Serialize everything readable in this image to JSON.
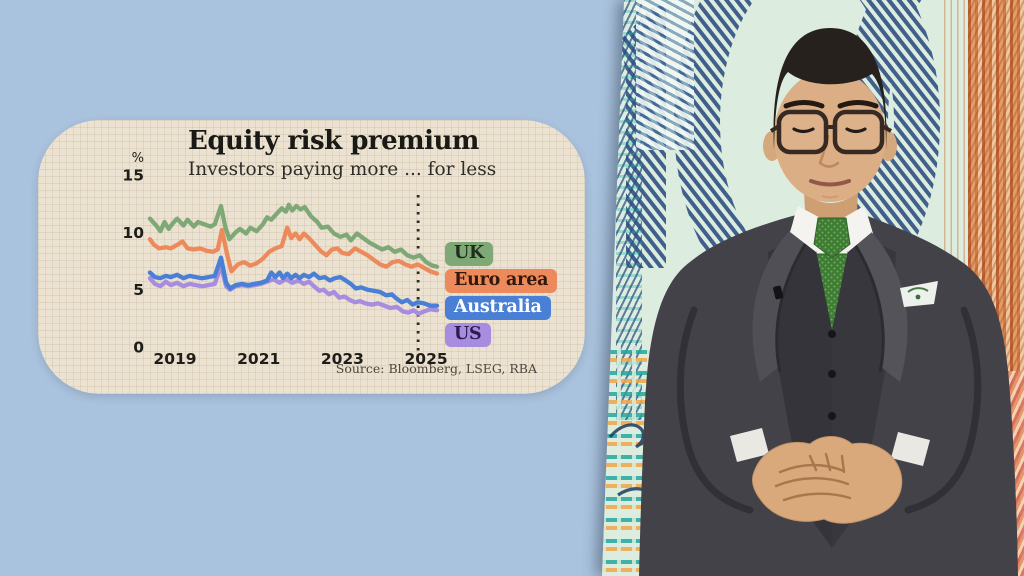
{
  "chart_panel": {
    "title": "Equity risk premium",
    "subtitle": "Investors paying more ... for less",
    "unit": "%",
    "source": "Source: Bloomberg, LSEG, RBA"
  },
  "chart_data": {
    "type": "line",
    "title": "Equity risk premium",
    "subtitle": "Investors paying more ... for less",
    "ylabel": "%",
    "ylim": [
      0,
      15
    ],
    "yticks": [
      0,
      5,
      10,
      15
    ],
    "xticks": [
      2019,
      2021,
      2023,
      2025
    ],
    "x_range": [
      2018.4,
      2025.26
    ],
    "grid": true,
    "legend_position": "right",
    "dashed_marker_x": 2024.81,
    "source": "Source: Bloomberg, LSEG, RBA",
    "series": [
      {
        "name": "UK",
        "color": "#7fa877",
        "label_color": "#1f2e1a",
        "points": [
          [
            2018.4,
            11.2
          ],
          [
            2018.55,
            10.6
          ],
          [
            2018.65,
            10.1
          ],
          [
            2018.75,
            10.9
          ],
          [
            2018.85,
            10.3
          ],
          [
            2018.95,
            10.8
          ],
          [
            2019.05,
            11.2
          ],
          [
            2019.2,
            10.6
          ],
          [
            2019.3,
            11.1
          ],
          [
            2019.45,
            10.5
          ],
          [
            2019.55,
            10.9
          ],
          [
            2019.7,
            10.7
          ],
          [
            2019.85,
            10.5
          ],
          [
            2019.95,
            10.7
          ],
          [
            2020.1,
            12.3
          ],
          [
            2020.2,
            10.5
          ],
          [
            2020.3,
            9.4
          ],
          [
            2020.45,
            10.0
          ],
          [
            2020.55,
            10.3
          ],
          [
            2020.7,
            9.9
          ],
          [
            2020.8,
            10.4
          ],
          [
            2020.95,
            10.1
          ],
          [
            2021.1,
            10.7
          ],
          [
            2021.2,
            11.3
          ],
          [
            2021.3,
            11.1
          ],
          [
            2021.45,
            11.7
          ],
          [
            2021.55,
            12.1
          ],
          [
            2021.65,
            11.8
          ],
          [
            2021.72,
            12.4
          ],
          [
            2021.8,
            11.9
          ],
          [
            2021.9,
            12.3
          ],
          [
            2022.0,
            12.0
          ],
          [
            2022.1,
            12.2
          ],
          [
            2022.25,
            11.4
          ],
          [
            2022.4,
            10.9
          ],
          [
            2022.5,
            10.4
          ],
          [
            2022.65,
            10.5
          ],
          [
            2022.8,
            9.9
          ],
          [
            2022.95,
            9.6
          ],
          [
            2023.1,
            9.8
          ],
          [
            2023.2,
            9.3
          ],
          [
            2023.35,
            9.9
          ],
          [
            2023.5,
            9.5
          ],
          [
            2023.65,
            9.1
          ],
          [
            2023.8,
            8.8
          ],
          [
            2023.95,
            8.5
          ],
          [
            2024.1,
            8.7
          ],
          [
            2024.25,
            8.3
          ],
          [
            2024.4,
            8.5
          ],
          [
            2024.55,
            8.0
          ],
          [
            2024.7,
            7.8
          ],
          [
            2024.85,
            8.0
          ],
          [
            2025.0,
            7.4
          ],
          [
            2025.15,
            7.1
          ],
          [
            2025.26,
            7.0
          ]
        ]
      },
      {
        "name": "Euro area",
        "color": "#ed8a5c",
        "label_color": "#33190b",
        "points": [
          [
            2018.4,
            9.4
          ],
          [
            2018.5,
            8.9
          ],
          [
            2018.62,
            8.6
          ],
          [
            2018.78,
            8.7
          ],
          [
            2018.9,
            8.6
          ],
          [
            2019.05,
            8.9
          ],
          [
            2019.18,
            9.2
          ],
          [
            2019.3,
            8.6
          ],
          [
            2019.45,
            8.5
          ],
          [
            2019.6,
            8.6
          ],
          [
            2019.75,
            8.4
          ],
          [
            2019.9,
            8.3
          ],
          [
            2020.02,
            8.5
          ],
          [
            2020.12,
            10.2
          ],
          [
            2020.25,
            8.0
          ],
          [
            2020.35,
            6.6
          ],
          [
            2020.5,
            7.2
          ],
          [
            2020.65,
            7.4
          ],
          [
            2020.8,
            7.1
          ],
          [
            2020.95,
            7.3
          ],
          [
            2021.1,
            7.7
          ],
          [
            2021.25,
            8.3
          ],
          [
            2021.4,
            8.6
          ],
          [
            2021.55,
            8.8
          ],
          [
            2021.68,
            10.4
          ],
          [
            2021.78,
            9.5
          ],
          [
            2021.88,
            9.9
          ],
          [
            2021.98,
            9.4
          ],
          [
            2022.08,
            9.9
          ],
          [
            2022.2,
            9.5
          ],
          [
            2022.35,
            8.9
          ],
          [
            2022.5,
            8.3
          ],
          [
            2022.62,
            8.0
          ],
          [
            2022.75,
            8.5
          ],
          [
            2022.88,
            8.6
          ],
          [
            2023.0,
            8.2
          ],
          [
            2023.15,
            8.1
          ],
          [
            2023.3,
            8.6
          ],
          [
            2023.45,
            8.3
          ],
          [
            2023.6,
            8.0
          ],
          [
            2023.75,
            7.6
          ],
          [
            2023.9,
            7.2
          ],
          [
            2024.05,
            7.0
          ],
          [
            2024.2,
            7.4
          ],
          [
            2024.35,
            7.5
          ],
          [
            2024.5,
            7.2
          ],
          [
            2024.65,
            7.0
          ],
          [
            2024.8,
            7.2
          ],
          [
            2024.95,
            6.9
          ],
          [
            2025.1,
            6.6
          ],
          [
            2025.26,
            6.4
          ]
        ]
      },
      {
        "name": "Australia",
        "color": "#4a7fd6",
        "label_color": "#ffffff",
        "points": [
          [
            2018.4,
            6.5
          ],
          [
            2018.52,
            6.1
          ],
          [
            2018.65,
            6.0
          ],
          [
            2018.78,
            6.2
          ],
          [
            2018.9,
            6.1
          ],
          [
            2019.05,
            6.3
          ],
          [
            2019.2,
            6.0
          ],
          [
            2019.35,
            6.2
          ],
          [
            2019.5,
            6.1
          ],
          [
            2019.65,
            6.0
          ],
          [
            2019.8,
            6.1
          ],
          [
            2019.95,
            6.2
          ],
          [
            2020.1,
            7.8
          ],
          [
            2020.22,
            5.6
          ],
          [
            2020.32,
            5.1
          ],
          [
            2020.45,
            5.4
          ],
          [
            2020.6,
            5.5
          ],
          [
            2020.75,
            5.4
          ],
          [
            2020.9,
            5.5
          ],
          [
            2021.05,
            5.6
          ],
          [
            2021.2,
            5.8
          ],
          [
            2021.3,
            6.5
          ],
          [
            2021.4,
            6.1
          ],
          [
            2021.5,
            6.5
          ],
          [
            2021.58,
            6.0
          ],
          [
            2021.68,
            6.4
          ],
          [
            2021.78,
            6.0
          ],
          [
            2021.88,
            6.3
          ],
          [
            2021.98,
            6.0
          ],
          [
            2022.08,
            6.3
          ],
          [
            2022.2,
            6.1
          ],
          [
            2022.32,
            6.4
          ],
          [
            2022.45,
            6.0
          ],
          [
            2022.58,
            6.1
          ],
          [
            2022.7,
            5.8
          ],
          [
            2022.82,
            6.0
          ],
          [
            2022.95,
            6.1
          ],
          [
            2023.08,
            5.8
          ],
          [
            2023.2,
            5.5
          ],
          [
            2023.32,
            5.1
          ],
          [
            2023.45,
            5.2
          ],
          [
            2023.6,
            5.0
          ],
          [
            2023.75,
            4.9
          ],
          [
            2023.9,
            4.8
          ],
          [
            2024.05,
            4.5
          ],
          [
            2024.18,
            4.6
          ],
          [
            2024.3,
            4.2
          ],
          [
            2024.42,
            3.9
          ],
          [
            2024.55,
            4.1
          ],
          [
            2024.68,
            3.7
          ],
          [
            2024.8,
            3.9
          ],
          [
            2024.95,
            3.8
          ],
          [
            2025.1,
            3.6
          ],
          [
            2025.26,
            3.6
          ]
        ]
      },
      {
        "name": "US",
        "color": "#a78ce0",
        "label_color": "#2a1d4e",
        "points": [
          [
            2018.4,
            6.0
          ],
          [
            2018.52,
            5.5
          ],
          [
            2018.65,
            5.3
          ],
          [
            2018.78,
            5.7
          ],
          [
            2018.9,
            5.4
          ],
          [
            2019.05,
            5.6
          ],
          [
            2019.2,
            5.3
          ],
          [
            2019.35,
            5.5
          ],
          [
            2019.5,
            5.4
          ],
          [
            2019.65,
            5.3
          ],
          [
            2019.8,
            5.4
          ],
          [
            2019.95,
            5.5
          ],
          [
            2020.1,
            7.1
          ],
          [
            2020.22,
            5.3
          ],
          [
            2020.32,
            5.0
          ],
          [
            2020.45,
            5.3
          ],
          [
            2020.6,
            5.4
          ],
          [
            2020.75,
            5.3
          ],
          [
            2020.9,
            5.4
          ],
          [
            2021.05,
            5.5
          ],
          [
            2021.2,
            5.7
          ],
          [
            2021.35,
            5.9
          ],
          [
            2021.5,
            5.6
          ],
          [
            2021.65,
            5.9
          ],
          [
            2021.8,
            5.6
          ],
          [
            2021.95,
            5.8
          ],
          [
            2022.08,
            5.5
          ],
          [
            2022.2,
            5.7
          ],
          [
            2022.32,
            5.3
          ],
          [
            2022.45,
            4.9
          ],
          [
            2022.55,
            5.0
          ],
          [
            2022.68,
            4.6
          ],
          [
            2022.8,
            4.8
          ],
          [
            2022.92,
            4.3
          ],
          [
            2023.05,
            4.4
          ],
          [
            2023.18,
            4.1
          ],
          [
            2023.3,
            3.9
          ],
          [
            2023.42,
            4.0
          ],
          [
            2023.55,
            3.8
          ],
          [
            2023.7,
            3.7
          ],
          [
            2023.85,
            3.8
          ],
          [
            2024.0,
            3.6
          ],
          [
            2024.15,
            3.4
          ],
          [
            2024.3,
            3.5
          ],
          [
            2024.45,
            3.1
          ],
          [
            2024.58,
            3.0
          ],
          [
            2024.7,
            3.2
          ],
          [
            2024.82,
            2.9
          ],
          [
            2024.95,
            3.1
          ],
          [
            2025.1,
            3.3
          ],
          [
            2025.26,
            3.2
          ]
        ]
      }
    ]
  }
}
